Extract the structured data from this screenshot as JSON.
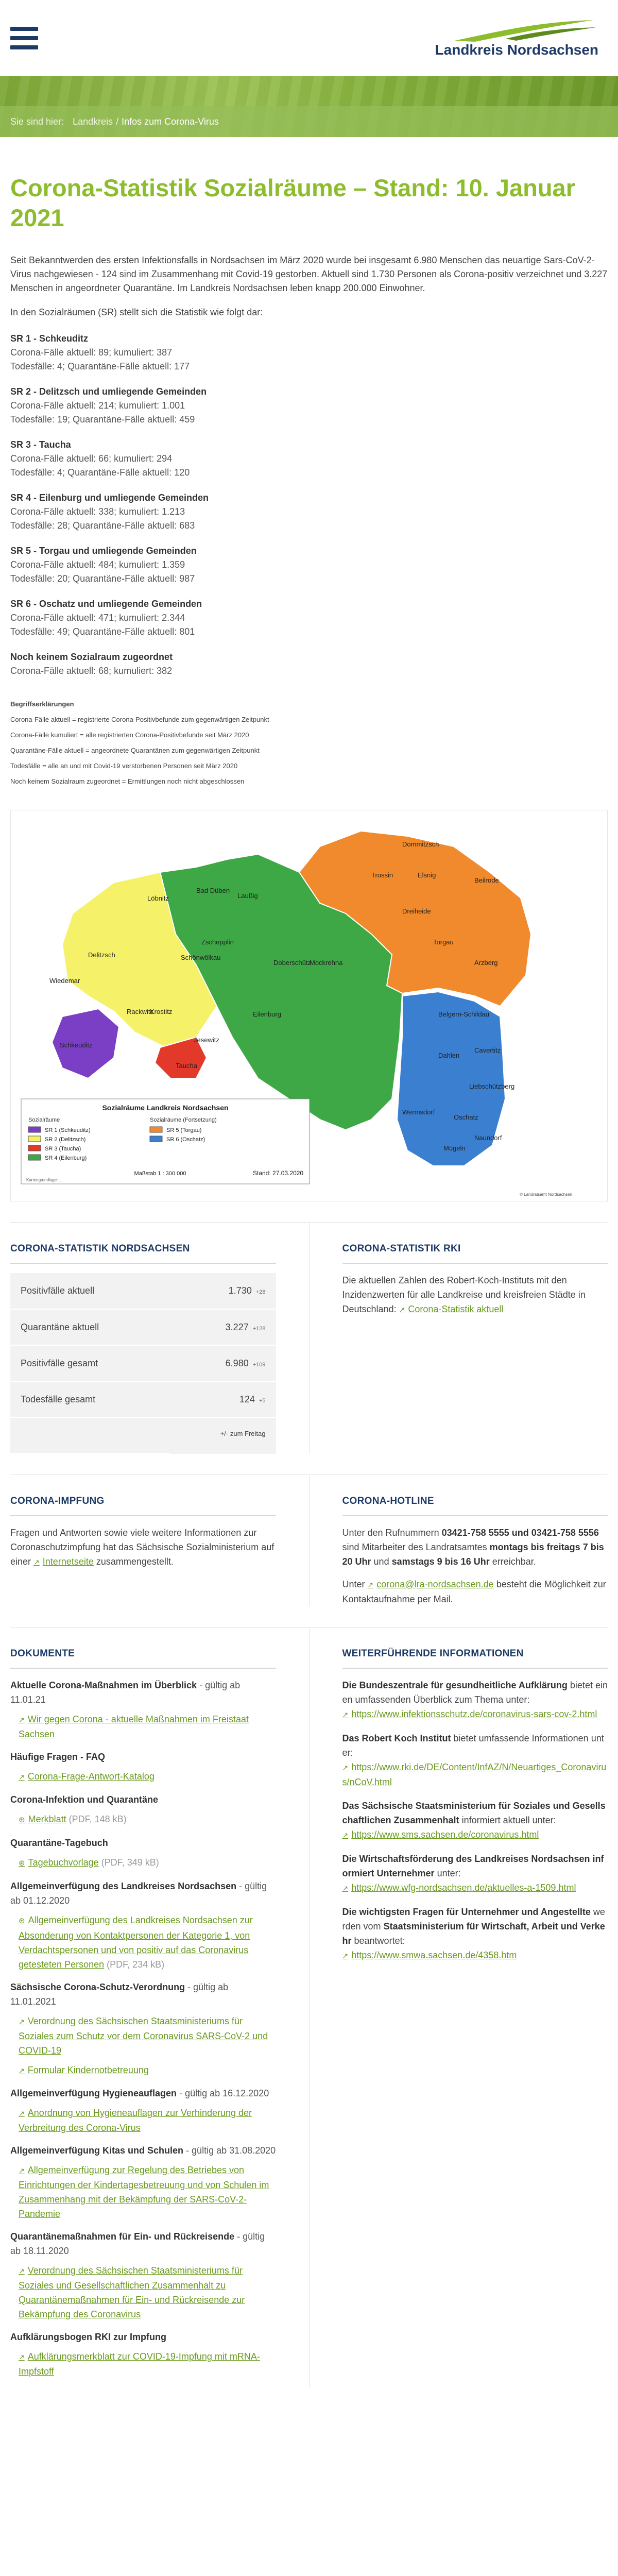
{
  "header": {
    "logo_text": "Landkreis Nordsachsen"
  },
  "breadcrumb": {
    "prefix": "Sie sind hier:",
    "items": [
      "Landkreis",
      "Infos zum Corona-Virus"
    ]
  },
  "main": {
    "title": "Corona-Statistik Sozialräume – Stand: 10. Januar 2021",
    "intro": "Seit Bekanntwerden des ersten Infektionsfalls in Nordsachsen im März 2020 wurde bei insgesamt 6.980 Menschen das neuartige Sars-CoV-2-Virus nachgewiesen - 124 sind im Zusammenhang mit Covid-19 gestorben. Aktuell sind 1.730 Personen als Corona-positiv verzeichnet und 3.227 Menschen in angeordneter Quarantäne. Im Landkreis Nordsachsen leben knapp 200.000 Einwohner.",
    "lead": "In den Sozialräumen (SR) stellt sich die Statistik wie folgt dar:",
    "regions": [
      {
        "name": "SR 1 - Schkeuditz",
        "line1": "Corona-Fälle aktuell: 89; kumuliert: 387",
        "line2": "Todesfälle: 4; Quarantäne-Fälle aktuell: 177"
      },
      {
        "name": "SR 2 - Delitzsch und umliegende Gemeinden",
        "line1": "Corona-Fälle aktuell: 214; kumuliert: 1.001",
        "line2": "Todesfälle: 19; Quarantäne-Fälle aktuell: 459"
      },
      {
        "name": "SR 3 - Taucha",
        "line1": "Corona-Fälle aktuell: 66; kumuliert: 294",
        "line2": "Todesfälle: 4; Quarantäne-Fälle aktuell: 120"
      },
      {
        "name": "SR 4 - Eilenburg und umliegende Gemeinden",
        "line1": "Corona-Fälle aktuell: 338; kumuliert: 1.213",
        "line2": "Todesfälle: 28; Quarantäne-Fälle aktuell: 683"
      },
      {
        "name": "SR 5 - Torgau und umliegende Gemeinden",
        "line1": "Corona-Fälle aktuell: 484; kumuliert: 1.359",
        "line2": "Todesfälle: 20; Quarantäne-Fälle aktuell: 987"
      },
      {
        "name": "SR 6 - Oschatz und umliegende Gemeinden",
        "line1": "Corona-Fälle aktuell: 471; kumuliert: 2.344",
        "line2": "Todesfälle: 49; Quarantäne-Fälle aktuell: 801"
      },
      {
        "name": "Noch keinem Sozialraum zugeordnet",
        "line1": "Corona-Fälle aktuell: 68; kumuliert: 382",
        "line2": ""
      }
    ],
    "notes_title": "Begriffserklärungen",
    "notes": [
      "Corona-Fälle aktuell = registrierte Corona-Positivbefunde zum gegenwärtigen Zeitpunkt",
      "Corona-Fälle kumuliert = alle registrierten Corona-Positivbefunde seit März 2020",
      "Quarantäne-Fälle aktuell = angeordnete Quarantänen zum gegenwärtigen Zeitpunkt",
      "Todesfälle = alle an und mit Covid-19 verstorbenen Personen seit März 2020",
      "Noch keinem Sozialraum zugeordnet = Ermittlungen noch nicht abgeschlossen"
    ]
  },
  "map": {
    "title": "Sozialräume Landkreis Nordsachsen",
    "legend_head_left": "Sozialräume",
    "legend_head_right": "Sozialräume (Fortsetzung)",
    "legend": [
      {
        "label": "SR 1 (Schkeuditz)",
        "color": "#7a3fc4"
      },
      {
        "label": "SR 2 (Delitzsch)",
        "color": "#f5f26a"
      },
      {
        "label": "SR 3 (Taucha)",
        "color": "#e3392b"
      },
      {
        "label": "SR 4 (Eilenburg)",
        "color": "#3da845"
      },
      {
        "label": "SR 5 (Torgau)",
        "color": "#f08a2c"
      },
      {
        "label": "SR 6 (Oschatz)",
        "color": "#3b7fd0"
      }
    ],
    "scale": "Maßstab 1 : 300 000",
    "date": "Stand: 27.03.2020",
    "footer_left": "Kartengrundlage: ...",
    "footer_right": "© Landratsamt Nordsachsen",
    "towns": [
      "Schkeuditz",
      "Delitzsch",
      "Wiedemar",
      "Rackwitz",
      "Krostitz",
      "Löbnitz",
      "Bad Düben",
      "Laußig",
      "Zschepplin",
      "Schönwölkau",
      "Jesewitz",
      "Taucha",
      "Eilenburg",
      "Doberschütz",
      "Mockrehna",
      "Dommitzsch",
      "Trossin",
      "Elsnig",
      "Beilrode",
      "Dreiheide",
      "Torgau",
      "Arzberg",
      "Belgern-Schildau",
      "Dahlen",
      "Cavertitz",
      "Liebschützberg",
      "Wermsdorf",
      "Oschatz",
      "Naundorf",
      "Mügeln"
    ]
  },
  "stats_nordsachsen": {
    "title": "CORONA-STATISTIK NORDSACHSEN",
    "rows": [
      {
        "label": "Positivfälle aktuell",
        "value": "1.730",
        "delta": "+28"
      },
      {
        "label": "Quarantäne aktuell",
        "value": "3.227",
        "delta": "+128"
      },
      {
        "label": "Positivfälle gesamt",
        "value": "6.980",
        "delta": "+109"
      },
      {
        "label": "Todesfälle gesamt",
        "value": "124",
        "delta": "+5"
      }
    ],
    "footnote": "+/- zum Freitag"
  },
  "stats_rki": {
    "title": "CORONA-STATISTIK RKI",
    "text": "Die aktuellen Zahlen des Robert-Koch-Instituts mit den Inzidenzwerten für alle Landkreise und kreisfreien Städte in Deutschland:",
    "link": "Corona-Statistik aktuell"
  },
  "impfung": {
    "title": "CORONA-IMPFUNG",
    "text": "Fragen und Antworten sowie viele weitere Informationen zur Coronaschutzimpfung hat das Sächsische Sozialministerium auf einer",
    "link": "Internetseite",
    "text_after": "zusammengestellt."
  },
  "hotline": {
    "title": "CORONA-HOTLINE",
    "text1": "Unter den Rufnummern",
    "numbers": "03421-758 5555",
    "and": "und",
    "numbers2": "03421-758 5556",
    "text2": "sind Mitarbeiter des Landratsamtes",
    "times": "montags bis freitags 7 bis 20 Uhr",
    "and2": "und",
    "times2": "samstags 9 bis 16 Uhr",
    "text3": "erreichbar.",
    "mail_pre": "Unter",
    "mail": "corona@lra-nordsachsen.de",
    "mail_post": "besteht die Möglichkeit zur Kontaktaufnahme per Mail."
  },
  "dokumente": {
    "title": "DOKUMENTE",
    "items": [
      {
        "head": "Aktuelle Corona-Maßnahmen im Überblick",
        "sub": "- gültig ab 11.01.21",
        "links": [
          {
            "text": "Wir gegen Corona - aktuelle Maßnahmen im Freistaat Sachsen",
            "size": "",
            "type": "ext"
          }
        ]
      },
      {
        "head": "Häufige Fragen - FAQ",
        "sub": "",
        "links": [
          {
            "text": "Corona-Frage-Antwort-Katalog",
            "size": "",
            "type": "ext"
          }
        ]
      },
      {
        "head": "Corona-Infektion und Quarantäne",
        "sub": "",
        "links": [
          {
            "text": "Merkblatt",
            "size": "(PDF, 148 kB)",
            "type": "dl"
          }
        ]
      },
      {
        "head": "Quarantäne-Tagebuch",
        "sub": "",
        "links": [
          {
            "text": "Tagebuchvorlage",
            "size": "(PDF, 349 kB)",
            "type": "dl"
          }
        ]
      },
      {
        "head": "Allgemeinverfügung des Landkreises Nordsachsen",
        "sub": "- gültig ab 01.12.2020",
        "links": [
          {
            "text": "Allgemeinverfügung des Landkreises Nordsachsen zur Absonderung von Kontaktpersonen der Kategorie 1, von Verdachtspersonen und von positiv auf das Coronavirus getesteten Personen",
            "size": "(PDF, 234 kB)",
            "type": "dl"
          }
        ]
      },
      {
        "head": "Sächsische Corona-Schutz-Verordnung",
        "sub": "- gültig ab 11.01.2021",
        "links": [
          {
            "text": "Verordnung des Sächsischen Staatsministeriums für Soziales zum Schutz vor dem Coronavirus SARS-CoV-2 und COVID-19",
            "size": "",
            "type": "ext"
          },
          {
            "text": "Formular Kindernotbetreuung",
            "size": "",
            "type": "ext"
          }
        ]
      },
      {
        "head": "Allgemeinverfügung Hygieneauflagen",
        "sub": "- gültig ab 16.12.2020",
        "links": [
          {
            "text": "Anordnung von Hygieneauflagen zur Verhinderung der Verbreitung des Corona-Virus",
            "size": "",
            "type": "ext"
          }
        ]
      },
      {
        "head": "Allgemeinverfügung Kitas und Schulen",
        "sub": "- gültig ab 31.08.2020",
        "links": [
          {
            "text": "Allgemeinverfügung zur Regelung des Betriebes von Einrichtungen der Kindertagesbetreuung und von Schulen im Zusammenhang mit der Bekämpfung der SARS-CoV-2-Pandemie",
            "size": "",
            "type": "ext"
          }
        ]
      },
      {
        "head": "Quarantänemaßnahmen für Ein- und Rückreisende",
        "sub": "- gültig ab 18.11.2020",
        "links": [
          {
            "text": "Verordnung des Sächsischen Staatsministeriums für Soziales und Gesellschaftlichen Zusammenhalt zu Quarantänemaßnahmen für Ein- und Rückreisende zur Bekämpfung des Coronavirus",
            "size": "",
            "type": "ext"
          }
        ]
      },
      {
        "head": "Aufklärungsbogen RKI zur Impfung",
        "sub": "",
        "links": [
          {
            "text": "Aufklärungsmerkblatt zur COVID-19-Impfung mit mRNA-Impfstoff",
            "size": "",
            "type": "ext"
          }
        ]
      }
    ]
  },
  "info": {
    "title": "WEITERFÜHRENDE INFORMATIONEN",
    "items": [
      {
        "bold": "Die Bundeszentrale für gesundheitliche Aufklärung",
        "text": "bietet einen umfassenden Überblick zum Thema unter:",
        "link": "https://www.infektionsschutz.de/coronavirus-sars-cov-2.html"
      },
      {
        "bold": "Das Robert Koch Institut",
        "text": "bietet umfassende Informationen unter:",
        "link": "https://www.rki.de/DE/Content/InfAZ/N/Neuartiges_Coronavirus/nCoV.html"
      },
      {
        "bold": "Das Sächsische Staatsministerium für Soziales und Gesellschaftlichen Zusammenhalt",
        "text": "informiert aktuell unter:",
        "link": "https://www.sms.sachsen.de/coronavirus.html"
      },
      {
        "bold": "Die Wirtschaftsförderung des Landkreises Nordsachsen informiert Unternehmer",
        "text": "unter:",
        "link": "https://www.wfg-nordsachsen.de/aktuelles-a-1509.html"
      },
      {
        "bold": "Die wichtigsten Fragen für Unternehmer und Angestellte",
        "text": "werden vom",
        "bold2": "Staatsministerium für Wirtschaft, Arbeit und Verkehr",
        "text2": "beantwortet:",
        "link": "https://www.smwa.sachsen.de/4358.htm"
      }
    ]
  }
}
